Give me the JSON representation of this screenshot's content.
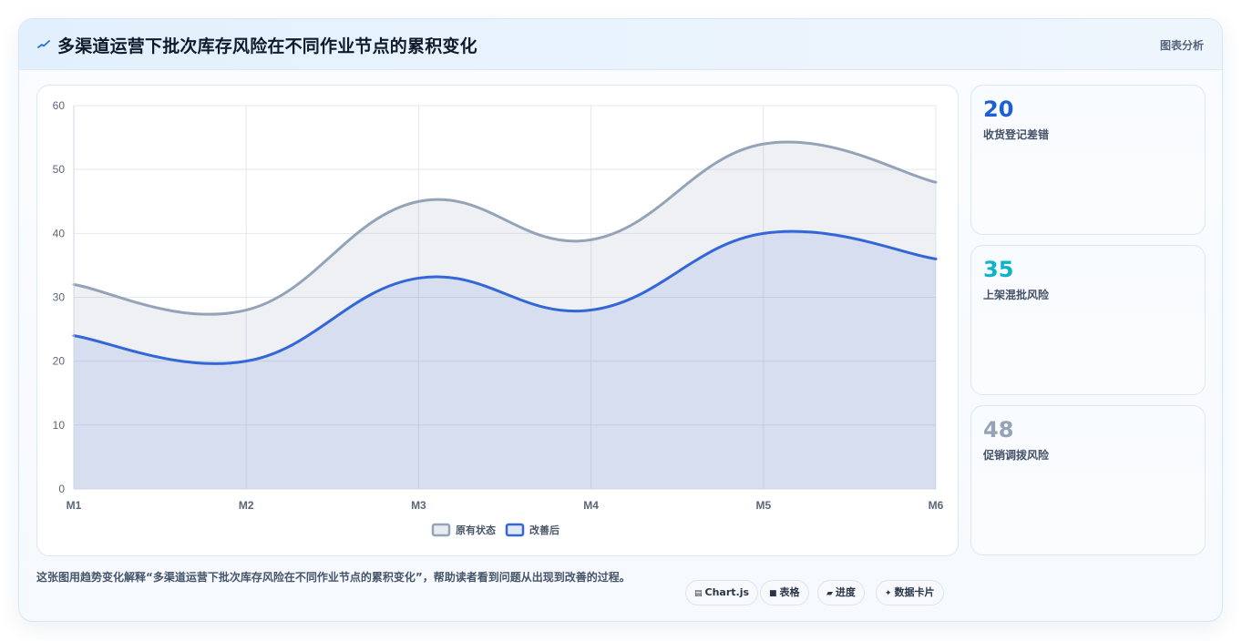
{
  "header": {
    "title": "多渠道运营下批次库存风险在不同作业节点的累积变化",
    "badge": "图表分析"
  },
  "colors": {
    "original": "#94a3b8",
    "improved": "#3366d6",
    "stat1": "#1f5fd6",
    "stat2": "#0eb3c8",
    "stat3": "#94a3b8"
  },
  "stats": [
    {
      "value": "20",
      "label": "收货登记差错"
    },
    {
      "value": "35",
      "label": "上架混批风险"
    },
    {
      "value": "48",
      "label": "促销调拨风险"
    }
  ],
  "footer": {
    "text": "这张图用趋势变化解释“多渠道运营下批次库存风险在不同作业节点的累积变化”，帮助读者看到问题从出现到改善的过程。"
  },
  "chips": [
    {
      "icon": "chart-icon",
      "label": "Chart.js"
    },
    {
      "icon": "table-icon",
      "label": "表格"
    },
    {
      "icon": "progress-icon",
      "label": "进度"
    },
    {
      "icon": "sparkle-icon",
      "label": "数据卡片"
    }
  ],
  "chart_data": {
    "type": "area",
    "categories": [
      "M1",
      "M2",
      "M3",
      "M4",
      "M5",
      "M6"
    ],
    "ylim": [
      0,
      60
    ],
    "yticks": [
      0,
      10,
      20,
      30,
      40,
      50,
      60
    ],
    "grid": true,
    "legend_position": "bottom",
    "series": [
      {
        "name": "原有状态",
        "values": [
          32,
          28,
          45,
          39,
          54,
          48
        ]
      },
      {
        "name": "改善后",
        "values": [
          24,
          20,
          33,
          28,
          40,
          36
        ]
      }
    ]
  }
}
